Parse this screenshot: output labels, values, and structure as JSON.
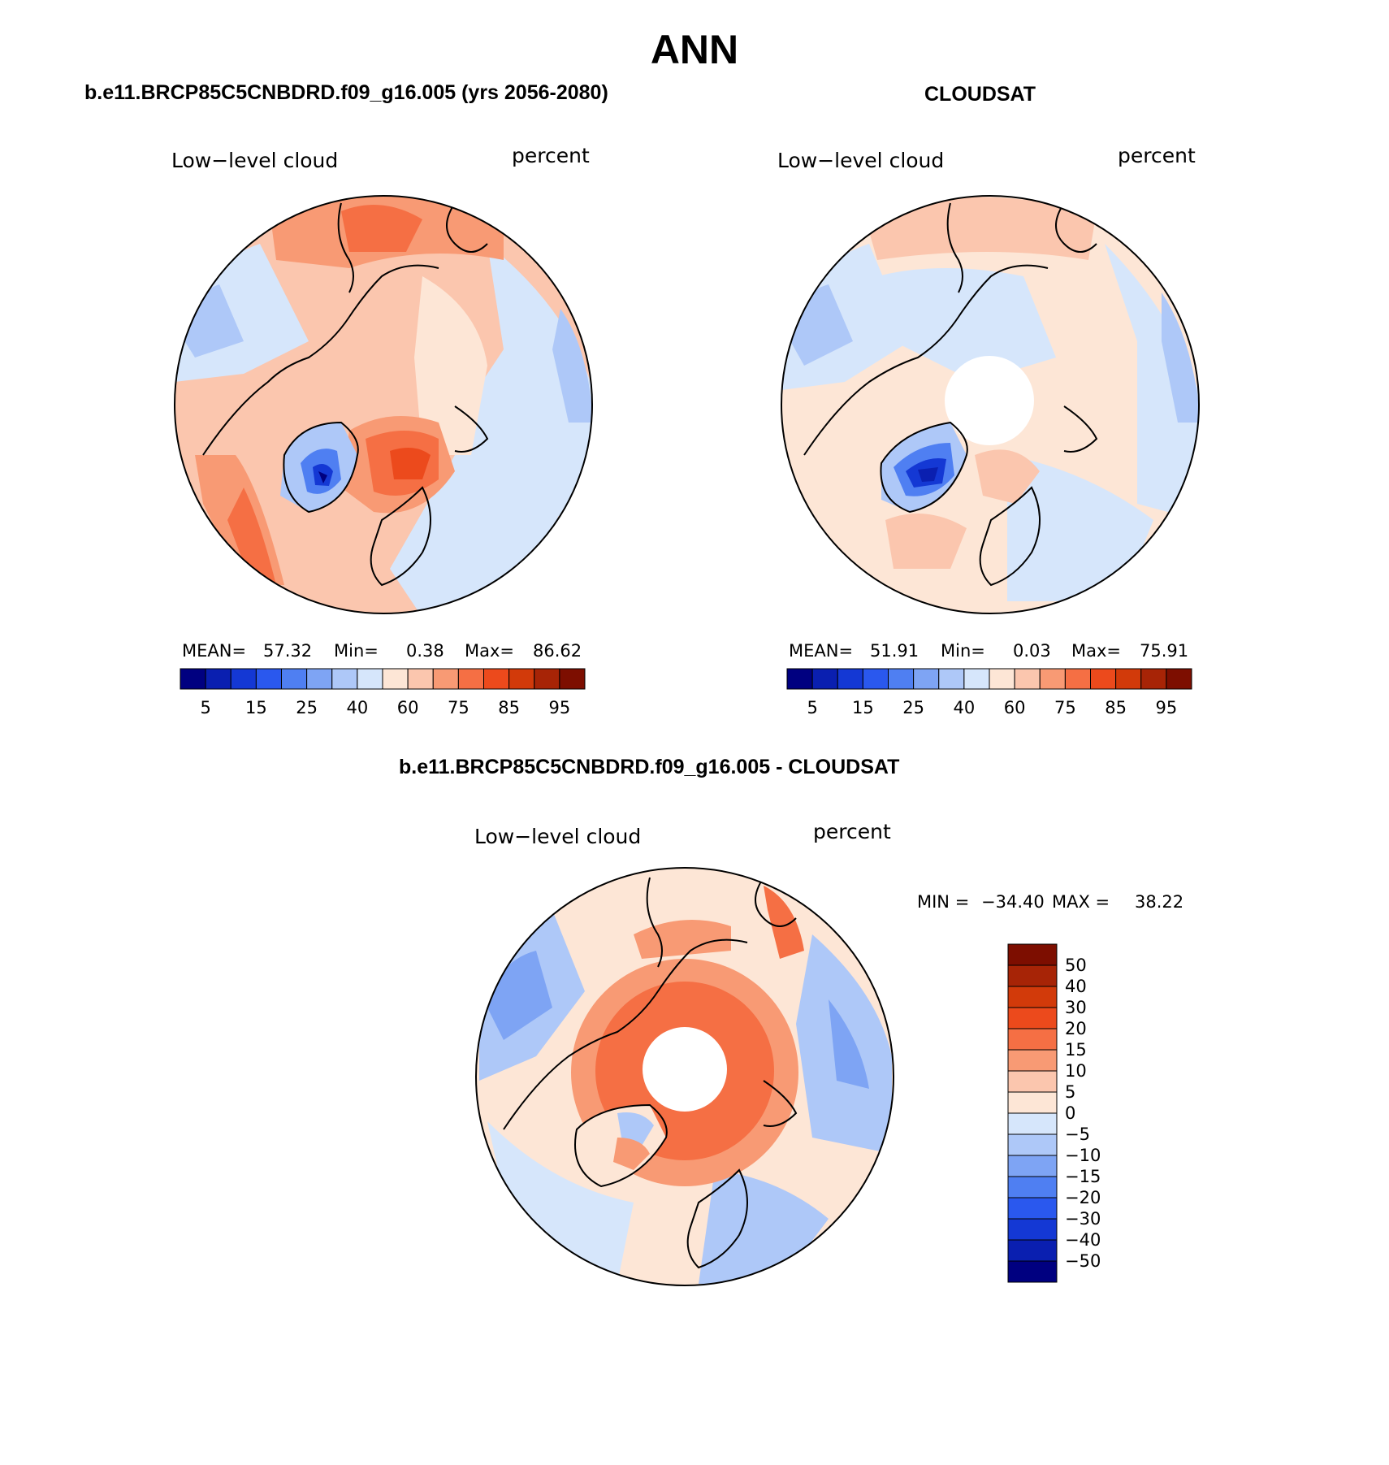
{
  "season": "ANN",
  "panels": [
    {
      "id": "model",
      "title": "b.e11.BRCP85C5CNBDRD.f09_g16.005 (yrs 2056-2080)",
      "left_label": "Low−level cloud",
      "right_label": "percent",
      "stats": {
        "mean_label": "MEAN=",
        "mean": "57.32",
        "min_label": "Min=",
        "min": "0.38",
        "max_label": "Max=",
        "max": "86.62"
      }
    },
    {
      "id": "obs",
      "title": "CLOUDSAT",
      "left_label": "Low−level cloud",
      "right_label": "percent",
      "stats": {
        "mean_label": "MEAN=",
        "mean": "51.91",
        "min_label": "Min=",
        "min": "0.03",
        "max_label": "Max=",
        "max": "75.91"
      }
    }
  ],
  "diff": {
    "title": "b.e11.BRCP85C5CNBDRD.f09_g16.005 - CLOUDSAT",
    "left_label": "Low−level cloud",
    "right_label": "percent",
    "min_label": "MIN =",
    "min": "−34.40",
    "max_label": "MAX =",
    "max": "38.22"
  },
  "chart_data": [
    {
      "type": "heatmap",
      "projection": "north polar stereographic",
      "title": "b.e11.BRCP85C5CNBDRD.f09_g16.005 (yrs 2056-2080)",
      "variable": "Low−level cloud",
      "units": "percent",
      "mean": 57.32,
      "min": 0.38,
      "max": 86.62,
      "colorbar": {
        "tick_labels": [
          "5",
          "15",
          "25",
          "40",
          "60",
          "75",
          "85",
          "95"
        ],
        "colors": [
          "#000080",
          "#0a1fb0",
          "#1438d4",
          "#2a58ee",
          "#4f7ff2",
          "#7ea4f4",
          "#aec8f8",
          "#d6e6fb",
          "#fde6d6",
          "#fbc6ae",
          "#f89a74",
          "#f56f44",
          "#ec4a1c",
          "#d23a0a",
          "#a72406",
          "#7d0e00"
        ]
      }
    },
    {
      "type": "heatmap",
      "projection": "north polar stereographic",
      "title": "CLOUDSAT",
      "variable": "Low−level cloud",
      "units": "percent",
      "mean": 51.91,
      "min": 0.03,
      "max": 75.91,
      "colorbar": {
        "tick_labels": [
          "5",
          "15",
          "25",
          "40",
          "60",
          "75",
          "85",
          "95"
        ],
        "colors": [
          "#000080",
          "#0a1fb0",
          "#1438d4",
          "#2a58ee",
          "#4f7ff2",
          "#7ea4f4",
          "#aec8f8",
          "#d6e6fb",
          "#fde6d6",
          "#fbc6ae",
          "#f89a74",
          "#f56f44",
          "#ec4a1c",
          "#d23a0a",
          "#a72406",
          "#7d0e00"
        ]
      }
    },
    {
      "type": "heatmap",
      "projection": "north polar stereographic",
      "title": "b.e11.BRCP85C5CNBDRD.f09_g16.005 - CLOUDSAT",
      "variable": "Low−level cloud",
      "units": "percent",
      "min": -34.4,
      "max": 38.22,
      "colorbar": {
        "tick_labels": [
          "50",
          "40",
          "30",
          "20",
          "15",
          "10",
          "5",
          "0",
          "−5",
          "−10",
          "−15",
          "−20",
          "−30",
          "−40",
          "−50"
        ],
        "colors": [
          "#7d0e00",
          "#a72406",
          "#d23a0a",
          "#ec4a1c",
          "#f56f44",
          "#f89a74",
          "#fbc6ae",
          "#fde6d6",
          "#d6e6fb",
          "#aec8f8",
          "#7ea4f4",
          "#4f7ff2",
          "#2a58ee",
          "#1438d4",
          "#0a1fb0",
          "#000080"
        ]
      }
    }
  ]
}
